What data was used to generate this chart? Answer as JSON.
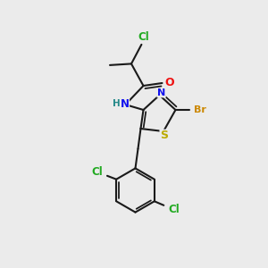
{
  "background_color": "#ebebeb",
  "bond_color": "#1a1a1a",
  "atom_colors": {
    "Cl": "#22aa22",
    "O": "#ee1111",
    "N": "#1111ee",
    "H": "#228888",
    "S": "#bbaa00",
    "Br": "#cc8800"
  },
  "figsize": [
    3.0,
    3.0
  ],
  "dpi": 100
}
